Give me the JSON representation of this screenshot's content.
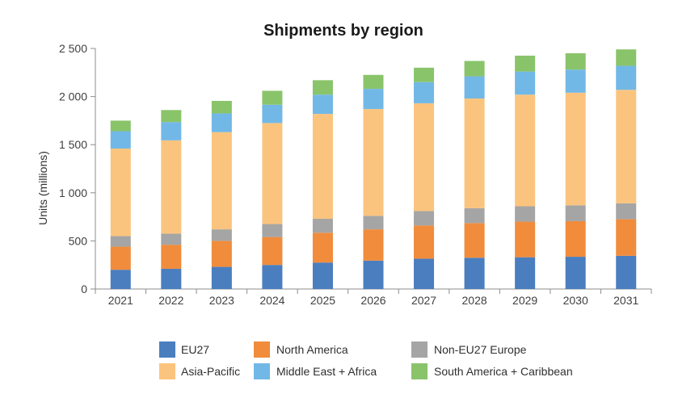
{
  "chart_data": {
    "type": "bar",
    "stacked": true,
    "title": "Shipments by region",
    "xlabel": "",
    "ylabel": "Units (millions)",
    "ylim": [
      0,
      2500
    ],
    "yticks": [
      0,
      500,
      1000,
      1500,
      2000,
      2500
    ],
    "ytick_labels": [
      "0",
      "500",
      "1 000",
      "1 500",
      "2 000",
      "2 500"
    ],
    "grid": false,
    "legend_position": "bottom",
    "categories": [
      "2021",
      "2022",
      "2023",
      "2024",
      "2025",
      "2026",
      "2027",
      "2028",
      "2029",
      "2030",
      "2031"
    ],
    "series": [
      {
        "name": "EU27",
        "color": "#4a7ebf",
        "values": [
          200,
          210,
          230,
          250,
          275,
          295,
          315,
          325,
          330,
          335,
          345
        ]
      },
      {
        "name": "North America",
        "color": "#f08c3c",
        "values": [
          240,
          250,
          270,
          290,
          310,
          325,
          345,
          360,
          370,
          370,
          380
        ]
      },
      {
        "name": "Non-EU27 Europe",
        "color": "#a5a5a5",
        "values": [
          110,
          115,
          120,
          135,
          145,
          140,
          150,
          155,
          160,
          165,
          165
        ]
      },
      {
        "name": "Asia-Pacific",
        "color": "#fbc47e",
        "values": [
          910,
          970,
          1010,
          1050,
          1090,
          1110,
          1120,
          1140,
          1160,
          1170,
          1180
        ]
      },
      {
        "name": "Middle East + Africa",
        "color": "#72b8e6",
        "values": [
          180,
          190,
          195,
          190,
          200,
          210,
          220,
          230,
          240,
          240,
          250
        ]
      },
      {
        "name": "South America + Caribbean",
        "color": "#8ac46a",
        "values": [
          110,
          125,
          130,
          145,
          150,
          145,
          150,
          160,
          165,
          170,
          170
        ]
      }
    ],
    "legend_order": [
      "EU27",
      "North America",
      "Non-EU27 Europe",
      "Asia-Pacific",
      "Middle East + Africa",
      "South America + Caribbean"
    ]
  }
}
